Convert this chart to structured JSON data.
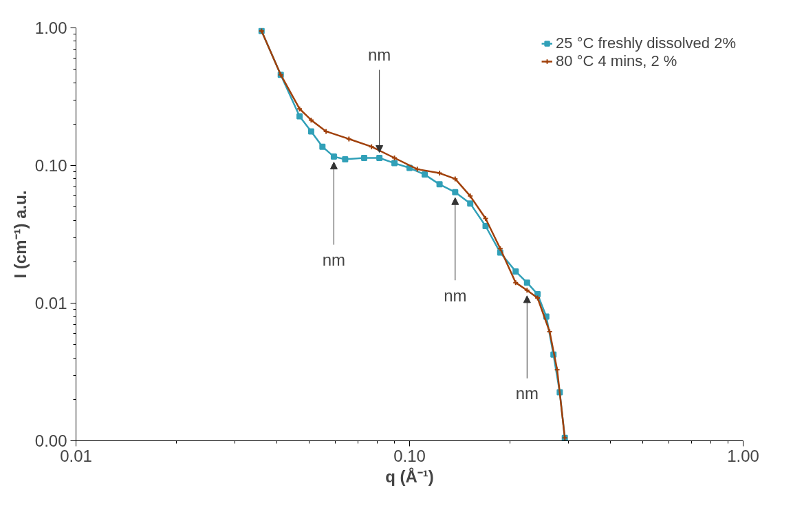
{
  "chart_data": {
    "type": "line",
    "xlabel": "q (Å⁻¹)",
    "ylabel": "I (cm⁻¹) a.u.",
    "log": "xy",
    "grid": false,
    "legend": "top right",
    "line_style": "solid",
    "xlim": [
      0.01,
      1
    ],
    "xticks": [
      0.01,
      {
        "value": 0.1,
        "label": "0.10"
      },
      {
        "value": 1,
        "label": "1.00"
      }
    ],
    "ylim": [
      0.001,
      1
    ],
    "yticks": [
      {
        "value": 0.001,
        "label": "0.00"
      },
      0.01,
      {
        "value": 0.1,
        "label": "0.10"
      },
      {
        "value": 1,
        "label": "1.00"
      }
    ],
    "series": [
      {
        "name": "25 °C freshly dissolved 2%",
        "color": "#31a0b8",
        "marker": "square",
        "x": [
          0.036,
          0.0411,
          0.0468,
          0.0507,
          0.0548,
          0.0593,
          0.0641,
          0.0731,
          0.0812,
          0.0901,
          0.1,
          0.111,
          0.123,
          0.137,
          0.152,
          0.169,
          0.187,
          0.208,
          0.225,
          0.242,
          0.257,
          0.27,
          0.282,
          0.292
        ],
        "values": [
          0.95,
          0.456,
          0.228,
          0.177,
          0.137,
          0.116,
          0.111,
          0.1135,
          0.1135,
          0.104,
          0.096,
          0.086,
          0.073,
          0.064,
          0.053,
          0.0363,
          0.0233,
          0.017,
          0.0141,
          0.0116,
          0.008,
          0.00423,
          0.00225,
          0.00105
        ]
      },
      {
        "name": "80 °C 4 mins, 2 %",
        "color": "#a0400a",
        "marker": "cross",
        "x": [
          0.036,
          0.0411,
          0.0468,
          0.0507,
          0.0562,
          0.0658,
          0.0769,
          0.0901,
          0.1055,
          0.123,
          0.137,
          0.152,
          0.169,
          0.187,
          0.208,
          0.225,
          0.242,
          0.263,
          0.277,
          0.292
        ],
        "values": [
          0.95,
          0.456,
          0.258,
          0.214,
          0.177,
          0.156,
          0.137,
          0.1135,
          0.094,
          0.088,
          0.08,
          0.06,
          0.0412,
          0.0249,
          0.0141,
          0.0124,
          0.0109,
          0.0062,
          0.00328,
          0.00105
        ]
      }
    ],
    "annotations": [
      {
        "text": "nm",
        "x": 0.0812,
        "y": 0.1135
      },
      {
        "text": "nm",
        "x": 0.0593,
        "y": 0.116
      },
      {
        "text": "nm",
        "x": 0.137,
        "y": 0.064
      },
      {
        "text": "nm",
        "x": 0.225,
        "y": 0.0124
      }
    ]
  }
}
